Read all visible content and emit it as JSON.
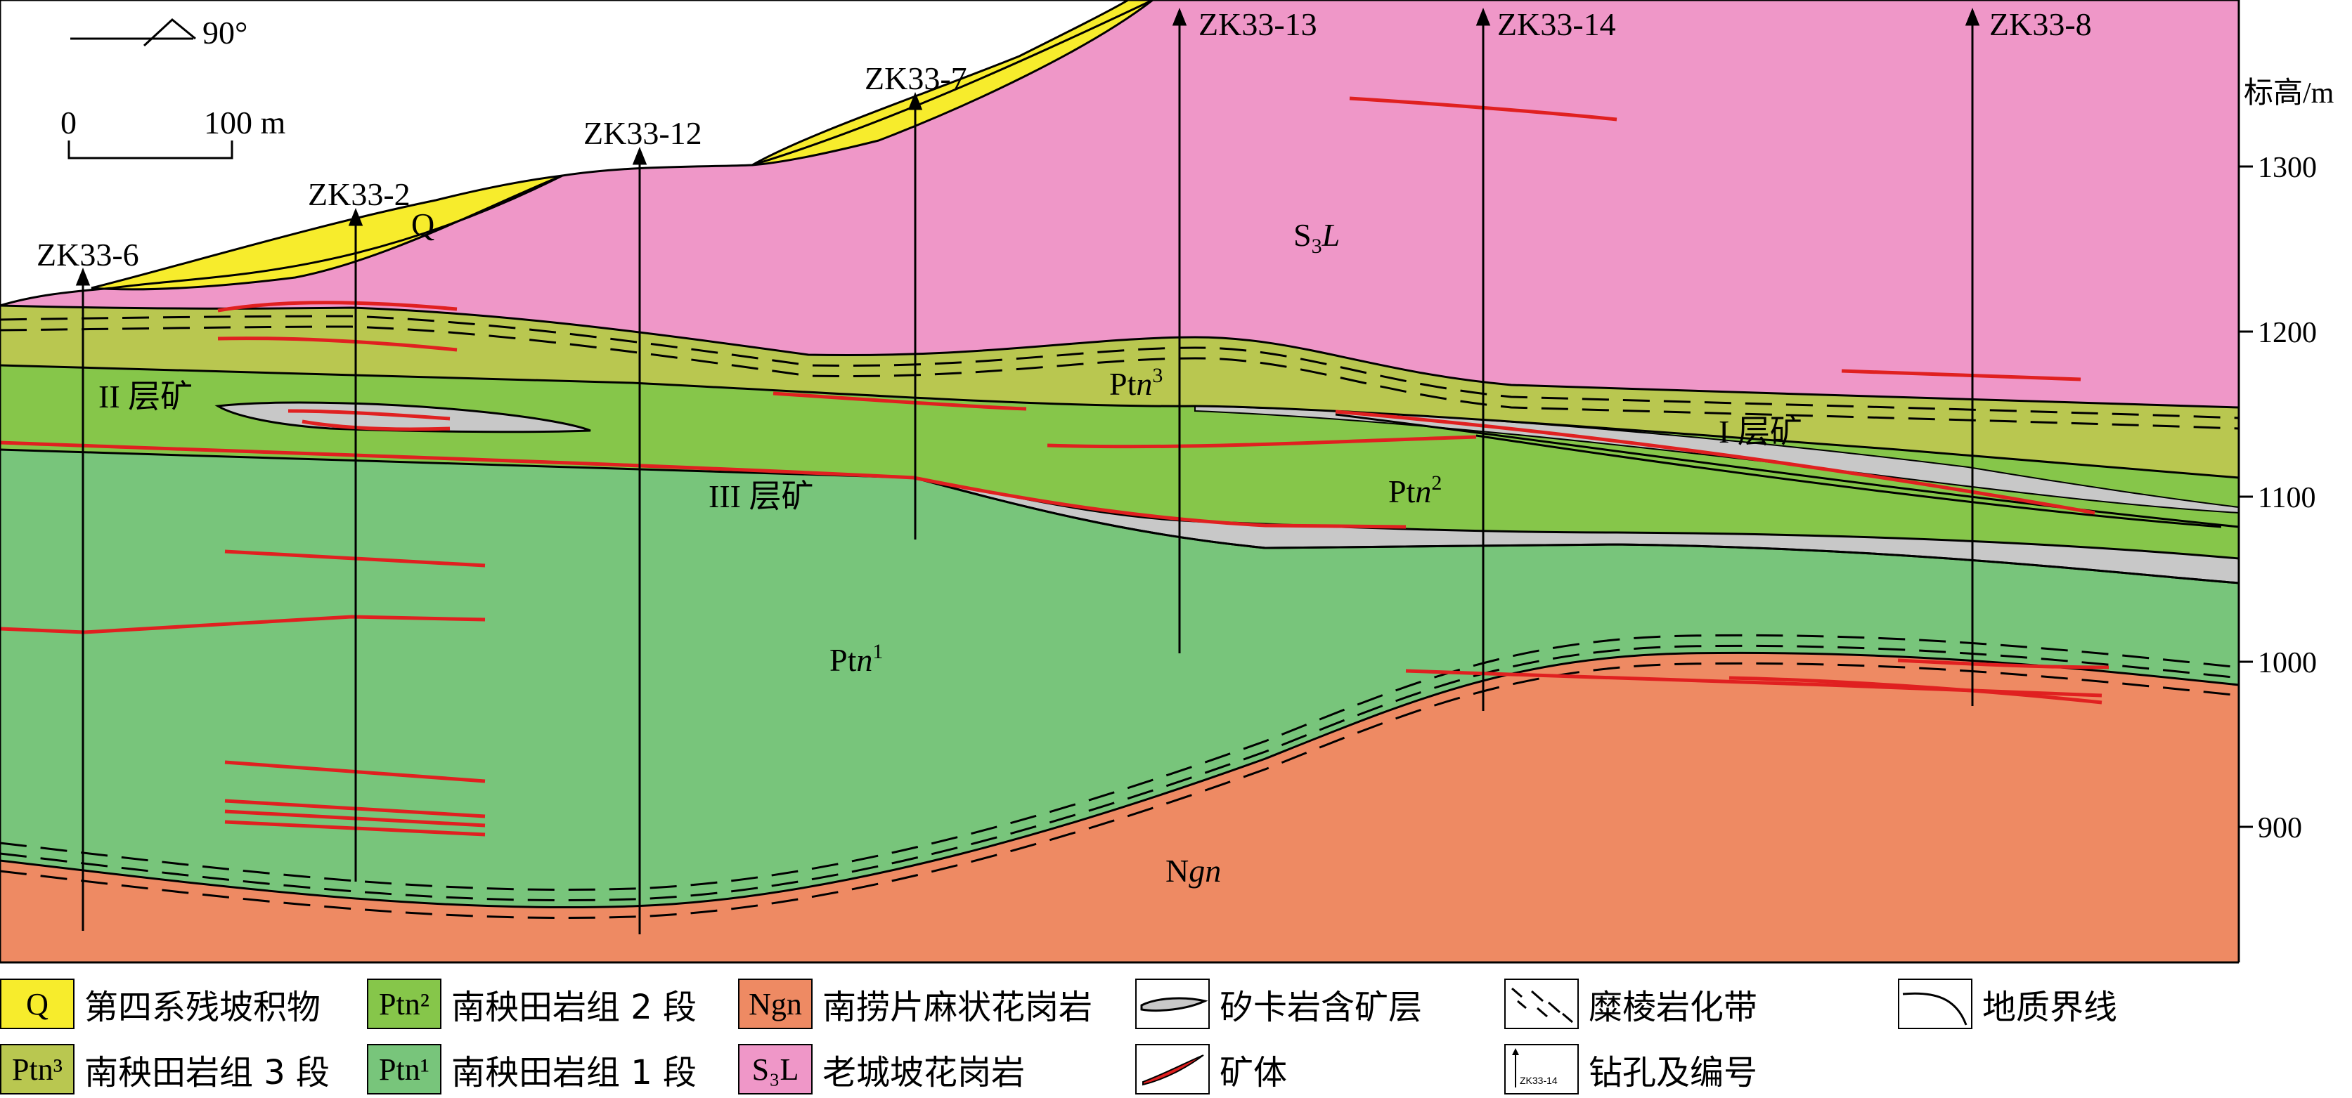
{
  "orientation_label": "90°",
  "scale": {
    "start": "0",
    "end": "100 m"
  },
  "elevation_axis": {
    "title": "标高/m",
    "ticks": [
      "1300",
      "1200",
      "1100",
      "1000",
      "900"
    ]
  },
  "drillholes": [
    "ZK33-6",
    "ZK33-2",
    "ZK33-12",
    "ZK33-7",
    "ZK33-13",
    "ZK33-14",
    "ZK33-8"
  ],
  "unit_labels": {
    "q": "Q",
    "s3l_main": "S",
    "s3l_sub": "3",
    "s3l_tail": "L",
    "ptn3_main": "Pt",
    "ptn3_it": "n",
    "ptn3_sup": "3",
    "ptn2_main": "Pt",
    "ptn2_it": "n",
    "ptn2_sup": "2",
    "ptn1_main": "Pt",
    "ptn1_it": "n",
    "ptn1_sup": "1",
    "ngn_main": "N",
    "ngn_it": "gn"
  },
  "ore_layers": [
    "II 层矿",
    "III 层矿",
    "I 层矿"
  ],
  "legend": [
    {
      "symbol": "Q",
      "label": "第四系残坡积物",
      "color": "#f7ec2c"
    },
    {
      "symbol": "Ptn²",
      "label": "南秧田岩组 2 段",
      "color": "#86c64a"
    },
    {
      "symbol": "Ngn",
      "label": "南捞片麻状花岗岩",
      "color": "#ee8a63"
    },
    {
      "symbol": "",
      "label": "矽卡岩含矿层",
      "color": "#c8c8c8"
    },
    {
      "symbol": "",
      "label": "糜棱岩化带",
      "color": "#ffffff"
    },
    {
      "symbol": "",
      "label": "地质界线",
      "color": "#ffffff"
    },
    {
      "symbol": "Ptn³",
      "label": "南秧田岩组 3 段",
      "color": "#b9c750"
    },
    {
      "symbol": "Ptn¹",
      "label": "南秧田岩组 1 段",
      "color": "#78c57b"
    },
    {
      "symbol": "S₃L",
      "label": "老城坡花岗岩",
      "color": "#ef97c8"
    },
    {
      "symbol": "",
      "label": "矿体",
      "color": "#e02020"
    },
    {
      "symbol": "ZK33-14",
      "label": "钻孔及编号",
      "color": "#ffffff"
    }
  ]
}
